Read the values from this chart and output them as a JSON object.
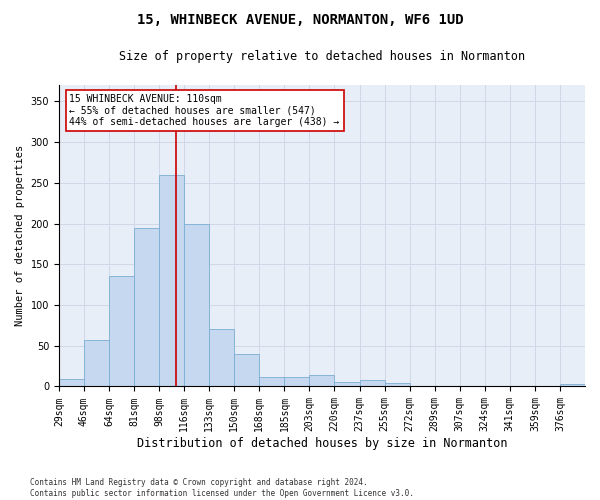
{
  "title": "15, WHINBECK AVENUE, NORMANTON, WF6 1UD",
  "subtitle": "Size of property relative to detached houses in Normanton",
  "xlabel": "Distribution of detached houses by size in Normanton",
  "ylabel": "Number of detached properties",
  "categories": [
    "29sqm",
    "46sqm",
    "64sqm",
    "81sqm",
    "98sqm",
    "116sqm",
    "133sqm",
    "150sqm",
    "168sqm",
    "185sqm",
    "203sqm",
    "220sqm",
    "237sqm",
    "255sqm",
    "272sqm",
    "289sqm",
    "307sqm",
    "324sqm",
    "341sqm",
    "359sqm",
    "376sqm"
  ],
  "values": [
    9,
    57,
    135,
    195,
    260,
    200,
    70,
    40,
    12,
    12,
    14,
    6,
    8,
    4,
    0,
    0,
    0,
    0,
    0,
    0,
    3
  ],
  "bar_color": "#c5d8f0",
  "bar_edge_color": "#7aadd4",
  "property_line_color": "#cc0000",
  "annotation_text": "15 WHINBECK AVENUE: 110sqm\n← 55% of detached houses are smaller (547)\n44% of semi-detached houses are larger (438) →",
  "annotation_box_color": "#ffffff",
  "annotation_box_edgecolor": "#cc0000",
  "ylim": [
    0,
    370
  ],
  "yticks": [
    0,
    50,
    100,
    150,
    200,
    250,
    300,
    350
  ],
  "grid_color": "#d0d8e8",
  "bg_color": "#e8eef8",
  "footer": "Contains HM Land Registry data © Crown copyright and database right 2024.\nContains public sector information licensed under the Open Government Licence v3.0.",
  "title_fontsize": 10,
  "subtitle_fontsize": 8.5,
  "xlabel_fontsize": 8.5,
  "ylabel_fontsize": 7.5,
  "tick_fontsize": 7,
  "annot_fontsize": 7,
  "footer_fontsize": 5.5
}
